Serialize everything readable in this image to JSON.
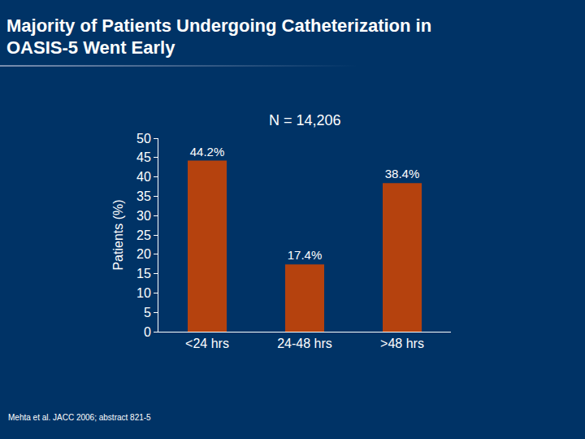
{
  "chart_data": {
    "type": "bar",
    "title": "Majority of Patients Undergoing Catheterization in OASIS-5 Went Early",
    "subtitle": "N = 14,206",
    "y_label": "Patients (%)",
    "categories": [
      "<24 hrs",
      "24-48 hrs",
      ">48 hrs"
    ],
    "values": [
      44.2,
      17.4,
      38.4
    ],
    "value_labels": [
      "44.2%",
      "17.4%",
      "38.4%"
    ],
    "data_labels": true,
    "color": "#b5420e",
    "ylim": [
      0,
      50
    ],
    "yticks": [
      0,
      5,
      10,
      15,
      20,
      25,
      30,
      35,
      40,
      45,
      50
    ],
    "grid": false,
    "source": "Mehta et al. JACC 2006; abstract 821-5"
  }
}
